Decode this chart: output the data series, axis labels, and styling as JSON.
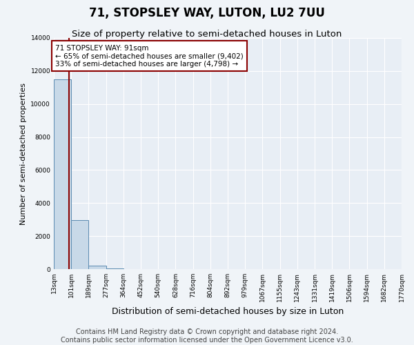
{
  "title": "71, STOPSLEY WAY, LUTON, LU2 7UU",
  "subtitle": "Size of property relative to semi-detached houses in Luton",
  "xlabel": "Distribution of semi-detached houses by size in Luton",
  "ylabel": "Number of semi-detached properties",
  "bin_edges": [
    13,
    101,
    189,
    277,
    364,
    452,
    540,
    628,
    716,
    804,
    892,
    979,
    1067,
    1155,
    1243,
    1331,
    1419,
    1506,
    1594,
    1682,
    1770
  ],
  "bin_counts": [
    11500,
    2950,
    200,
    30,
    10,
    5,
    3,
    2,
    2,
    2,
    1,
    1,
    1,
    1,
    1,
    0,
    0,
    0,
    0,
    0
  ],
  "bar_color": "#c8d9e8",
  "bar_edge_color": "#5a8ab0",
  "property_size": 91,
  "annotation_text": "71 STOPSLEY WAY: 91sqm\n← 65% of semi-detached houses are smaller (9,402)\n33% of semi-detached houses are larger (4,798) →",
  "annotation_box_color": "white",
  "annotation_box_edge_color": "darkred",
  "vline_color": "darkred",
  "vline_x": 91,
  "ylim": [
    0,
    14000
  ],
  "yticks": [
    0,
    2000,
    4000,
    6000,
    8000,
    10000,
    12000,
    14000
  ],
  "tick_labels": [
    "13sqm",
    "101sqm",
    "189sqm",
    "277sqm",
    "364sqm",
    "452sqm",
    "540sqm",
    "628sqm",
    "716sqm",
    "804sqm",
    "892sqm",
    "979sqm",
    "1067sqm",
    "1155sqm",
    "1243sqm",
    "1331sqm",
    "1419sqm",
    "1506sqm",
    "1594sqm",
    "1682sqm",
    "1770sqm"
  ],
  "footer_line1": "Contains HM Land Registry data © Crown copyright and database right 2024.",
  "footer_line2": "Contains public sector information licensed under the Open Government Licence v3.0.",
  "bg_color": "#f0f4f8",
  "plot_bg_color": "#e8eef5",
  "grid_color": "white",
  "title_fontsize": 12,
  "subtitle_fontsize": 9.5,
  "footer_fontsize": 7,
  "ylabel_fontsize": 8,
  "xlabel_fontsize": 9,
  "annot_fontsize": 7.5,
  "tick_fontsize": 6.5
}
